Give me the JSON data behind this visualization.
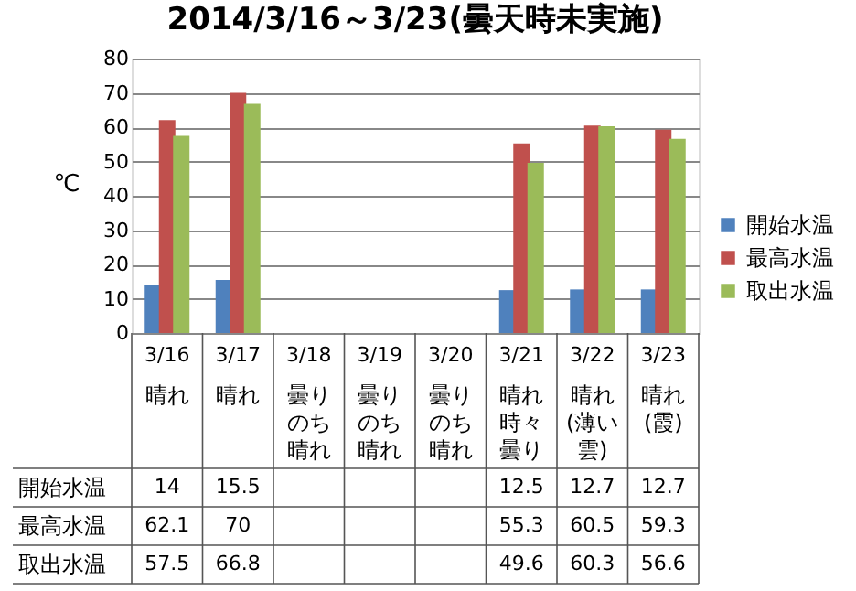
{
  "chart_data": {
    "type": "bar",
    "title": "2014/3/16～3/23(曇天時未実施)",
    "ylabel": "℃",
    "categories": [
      "3/16",
      "3/17",
      "3/18",
      "3/19",
      "3/20",
      "3/21",
      "3/22",
      "3/23"
    ],
    "series": [
      {
        "name": "開始水温",
        "color": "#4f81bd",
        "values": [
          14,
          15.5,
          null,
          null,
          null,
          12.5,
          12.7,
          12.7
        ]
      },
      {
        "name": "最高水温",
        "color": "#c0504d",
        "values": [
          62.1,
          70,
          null,
          null,
          null,
          55.3,
          60.5,
          59.3
        ]
      },
      {
        "name": "取出水温",
        "color": "#9bbb59",
        "values": [
          57.5,
          66.8,
          null,
          null,
          null,
          49.6,
          60.3,
          56.6
        ]
      }
    ],
    "annotations": [
      "晴れ",
      "晴れ",
      "曇りのち晴れ",
      "曇りのち晴れ",
      "曇りのち晴れ",
      "晴れ時々曇り",
      "晴れ(薄い雲)",
      "晴れ(霞)"
    ],
    "ylim": [
      0,
      80
    ],
    "yticks": [
      0,
      10,
      20,
      30,
      40,
      50,
      60,
      70,
      80
    ],
    "grid": "y",
    "legend": "right",
    "data_labels": true
  }
}
